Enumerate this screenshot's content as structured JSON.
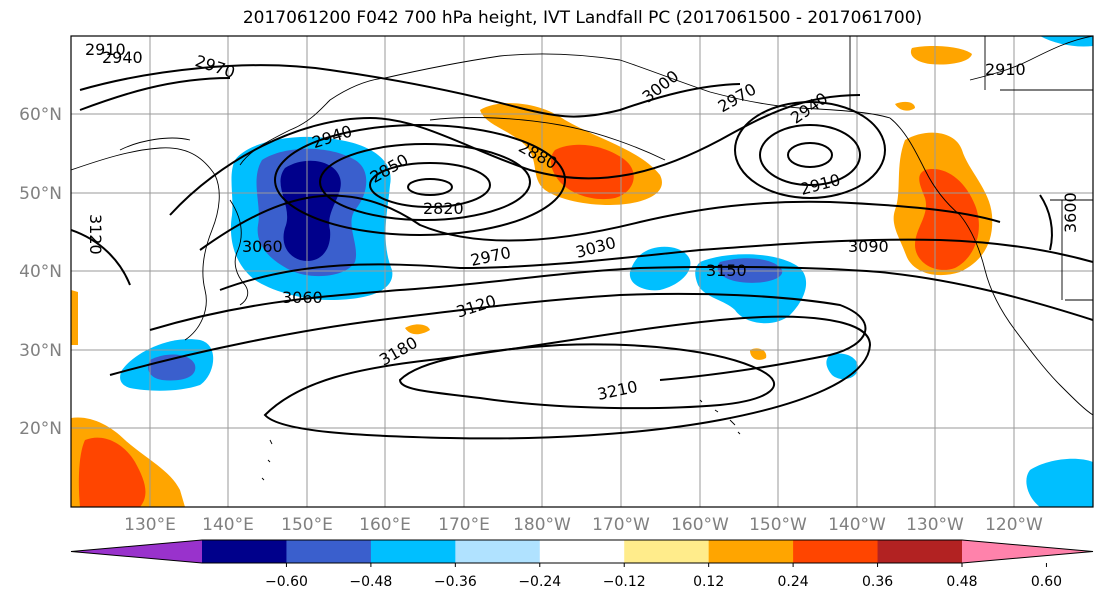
{
  "title": "2017061200 F042 700 hPa height, IVT Landfall PC (2017061500 - 2017061700)",
  "map": {
    "lat_labels": [
      "60°N",
      "50°N",
      "40°N",
      "30°N",
      "20°N"
    ],
    "lon_labels": [
      "130°E",
      "140°E",
      "150°E",
      "160°E",
      "170°E",
      "180°W",
      "170°W",
      "160°W",
      "150°W",
      "140°W",
      "130°W",
      "120°W"
    ],
    "contour_labels": [
      "2910",
      "2940",
      "2970",
      "3000",
      "2970",
      "2940",
      "2910",
      "2940",
      "2850",
      "2880",
      "2820",
      "2910",
      "3120",
      "3060",
      "3060",
      "2970",
      "3030",
      "3090",
      "3150",
      "3120",
      "3180",
      "3210",
      "3600",
      "2910"
    ]
  },
  "colorbar": {
    "ticks": [
      "−0.60",
      "−0.48",
      "−0.36",
      "−0.24",
      "−0.12",
      "0.12",
      "0.24",
      "0.36",
      "0.48",
      "0.60"
    ],
    "colors": [
      "#9932cc",
      "#00008b",
      "#3a5fcd",
      "#00bfff",
      "#b0e2ff",
      "#ffffff",
      "#ffec8b",
      "#ffa500",
      "#ff4500",
      "#b22222",
      "#ff82ab"
    ]
  },
  "legend_colors": {
    "strong_negative": "#3a5fcd",
    "moderate_negative": "#00bfff",
    "weak_positive": "#ffec8b",
    "moderate_positive": "#ffa500",
    "strong_positive": "#ff4500"
  }
}
